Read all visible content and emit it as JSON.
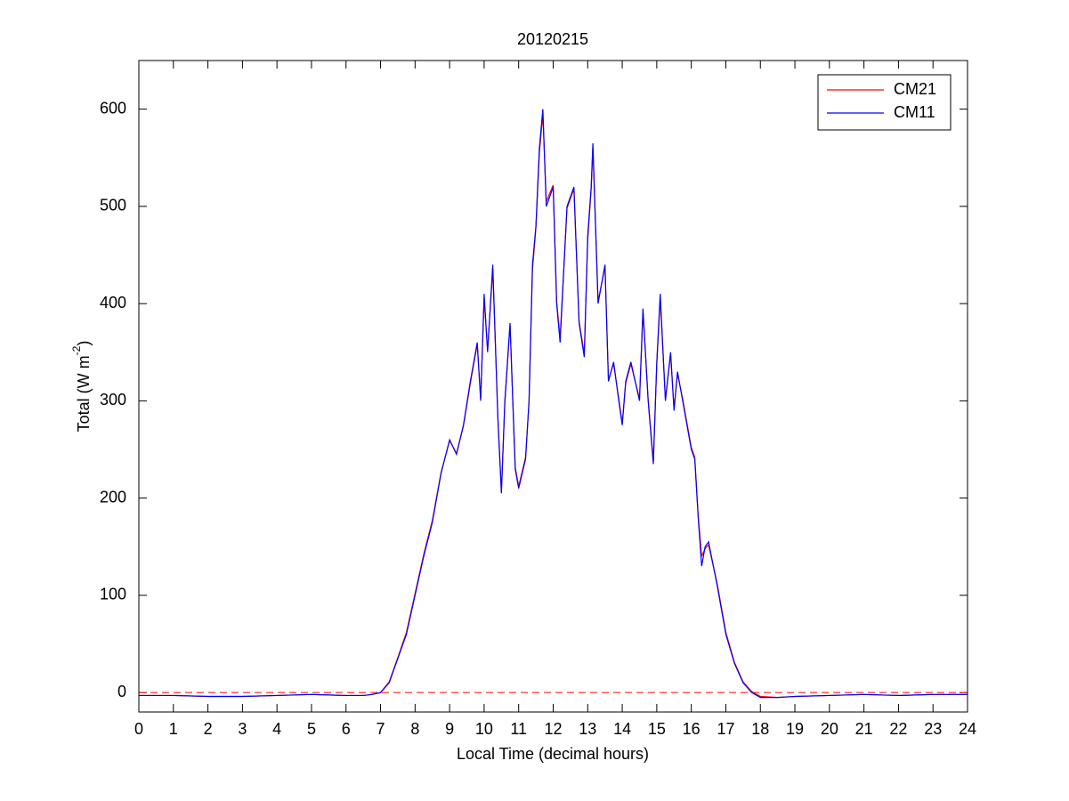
{
  "chart_data": {
    "type": "line",
    "title": "20120215",
    "xlabel": "Local Time (decimal hours)",
    "ylabel": {
      "text": "Total (W m",
      "superscript": "-2",
      "suffix": ")"
    },
    "x": [
      0,
      1,
      2,
      3,
      4,
      5,
      6,
      6.5,
      6.75,
      7,
      7.25,
      7.5,
      7.75,
      8,
      8.25,
      8.5,
      8.75,
      9,
      9.2,
      9.4,
      9.6,
      9.8,
      9.9,
      10,
      10.1,
      10.25,
      10.4,
      10.5,
      10.6,
      10.75,
      10.9,
      11,
      11.2,
      11.3,
      11.4,
      11.5,
      11.6,
      11.7,
      11.8,
      12,
      12.1,
      12.2,
      12.4,
      12.6,
      12.75,
      12.9,
      13,
      13.1,
      13.15,
      13.3,
      13.5,
      13.6,
      13.75,
      13.9,
      14,
      14.1,
      14.25,
      14.5,
      14.6,
      14.75,
      14.9,
      15,
      15.1,
      15.25,
      15.4,
      15.5,
      15.6,
      15.75,
      16,
      16.1,
      16.2,
      16.3,
      16.4,
      16.5,
      16.75,
      17,
      17.25,
      17.5,
      17.75,
      18,
      18.5,
      19,
      20,
      21,
      22,
      23,
      24
    ],
    "series": [
      {
        "name": "CM21",
        "color": "#ff0000",
        "values": [
          -3,
          -3,
          -4,
          -4,
          -3,
          -2,
          -3,
          -3,
          -2,
          0,
          11,
          36,
          62,
          102,
          142,
          177,
          226,
          259,
          246,
          274,
          318,
          358,
          302,
          405,
          352,
          435,
          282,
          207,
          298,
          378,
          232,
          212,
          242,
          298,
          435,
          478,
          555,
          595,
          505,
          522,
          402,
          365,
          498,
          518,
          382,
          348,
          465,
          518,
          560,
          402,
          438,
          322,
          338,
          302,
          277,
          318,
          338,
          302,
          392,
          302,
          238,
          338,
          405,
          302,
          348,
          292,
          328,
          302,
          252,
          242,
          182,
          140,
          148,
          152,
          112,
          62,
          31,
          11,
          1,
          -4,
          -5,
          -4,
          -3,
          -2,
          -3,
          -2,
          -2
        ]
      },
      {
        "name": "CM11",
        "color": "#0000ff",
        "values": [
          -3,
          -3,
          -4,
          -4,
          -3,
          -2,
          -3,
          -3,
          -2,
          0,
          10,
          35,
          60,
          100,
          140,
          175,
          225,
          260,
          245,
          275,
          320,
          360,
          300,
          410,
          350,
          440,
          280,
          205,
          300,
          380,
          230,
          210,
          240,
          300,
          440,
          480,
          560,
          600,
          500,
          520,
          400,
          360,
          500,
          520,
          380,
          345,
          470,
          520,
          565,
          400,
          440,
          320,
          340,
          300,
          275,
          320,
          340,
          300,
          395,
          300,
          235,
          340,
          410,
          300,
          350,
          290,
          330,
          300,
          250,
          240,
          180,
          130,
          150,
          155,
          110,
          60,
          30,
          10,
          0,
          -5,
          -5,
          -4,
          -3,
          -2,
          -3,
          -2,
          -2
        ]
      }
    ],
    "hline": {
      "value": 0,
      "color": "#ff0000",
      "style": "dashed"
    },
    "xlim": [
      0,
      24
    ],
    "xticks": [
      0,
      1,
      2,
      3,
      4,
      5,
      6,
      7,
      8,
      9,
      10,
      11,
      12,
      13,
      14,
      15,
      16,
      17,
      18,
      19,
      20,
      21,
      22,
      23,
      24
    ],
    "ylim": [
      -20,
      650
    ],
    "yticks": [
      0,
      100,
      200,
      300,
      400,
      500,
      600
    ],
    "grid": false,
    "legend": "upper right"
  }
}
